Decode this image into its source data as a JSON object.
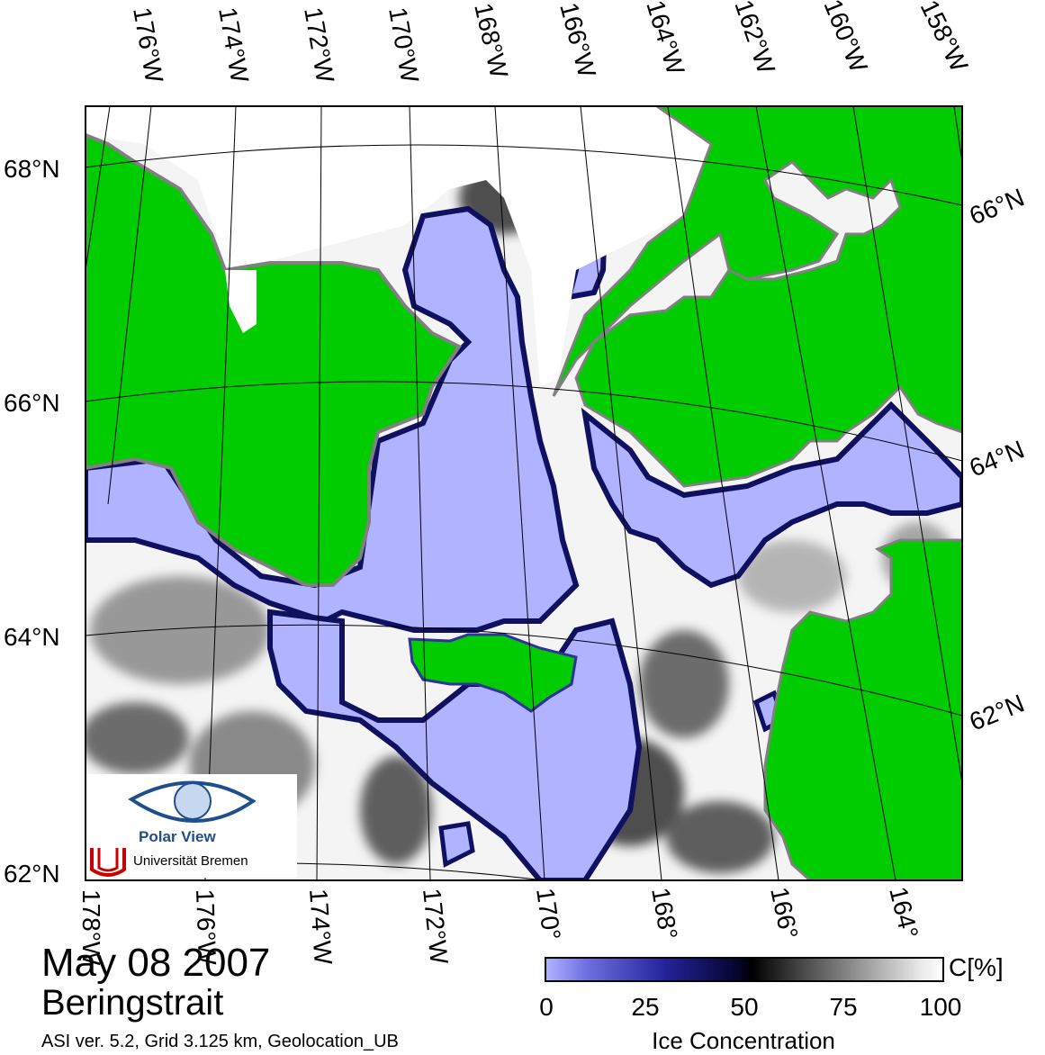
{
  "map": {
    "date": "May 08 2007",
    "region": "Beringstrait",
    "meta": "ASI ver. 5.2,  Grid 3.125 km, Geolocation_UB",
    "top_lon_labels": [
      "176°W",
      "174°W",
      "172°W",
      "170°W",
      "168°W",
      "166°W",
      "164°W",
      "162°W",
      "160°W",
      "158°W"
    ],
    "bottom_lon_labels": [
      "178°W",
      "176°W",
      "174°W",
      "172°W",
      "170°",
      "168°",
      "166°",
      "164°"
    ],
    "left_lat_labels": [
      "68°N",
      "66°N",
      "64°N",
      "62°N"
    ],
    "right_lat_labels": [
      "66°N",
      "64°N",
      "62°N"
    ],
    "colors": {
      "land": "#00cc00",
      "open_water": "#b0b3ff",
      "ice_edge": "#1a1a80",
      "high_ice": "#ffffff",
      "coast_gray": "#808080"
    }
  },
  "colorbar": {
    "unit": "C[%]",
    "ticks": [
      "0",
      "25",
      "50",
      "75",
      "100"
    ],
    "title": "Ice Concentration"
  },
  "logo": {
    "name": "Polar View",
    "institution": "Universität Bremen"
  }
}
